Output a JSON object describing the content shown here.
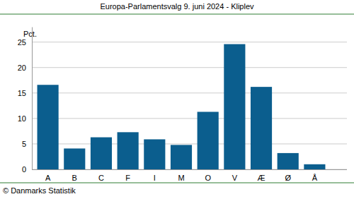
{
  "chart_data": {
    "type": "bar",
    "title": "Europa-Parlamentsvalg 9. juni 2024 - Kliplev",
    "ylabel": "Pct.",
    "source": "© Danmarks Statistik",
    "categories": [
      "A",
      "B",
      "C",
      "F",
      "I",
      "M",
      "O",
      "V",
      "Æ",
      "Ø",
      "Å"
    ],
    "values": [
      16.6,
      4.1,
      6.3,
      7.3,
      5.9,
      4.8,
      11.3,
      24.6,
      16.2,
      3.2,
      1.0
    ],
    "color": "#0b5e8e",
    "ylim": [
      0,
      28
    ],
    "yticks": [
      0,
      5,
      10,
      15,
      20,
      25
    ],
    "grid": true
  }
}
